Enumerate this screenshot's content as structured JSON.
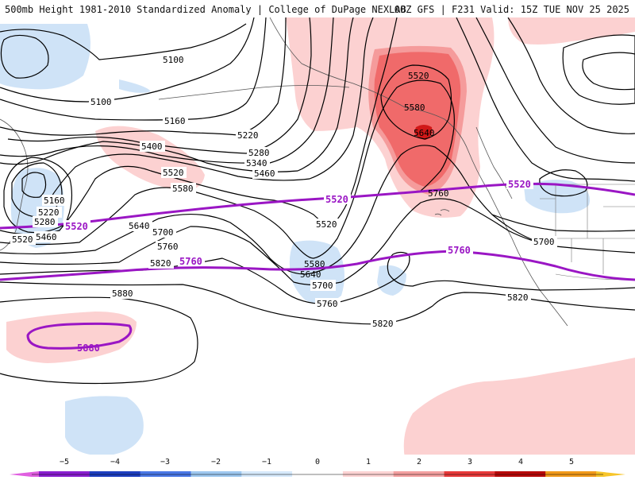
{
  "header": {
    "title": "500mb Height 1981-2010 Standardized Anomaly | College of DuPage NEXLAB",
    "run_info": "00Z GFS | F231 Valid: 15Z TUE NOV 25 2025"
  },
  "contour_labels": {
    "c5100a": "5100",
    "c5100b": "5100",
    "c5160a": "5160",
    "c5160b": "5160",
    "c5220a": "5220",
    "c5220b": "5220",
    "c5280a": "5280",
    "c5280b": "5280",
    "c5340": "5340",
    "c5400": "5400",
    "c5460a": "5460",
    "c5460b": "5460",
    "c5520a": "5520",
    "c5520b": "5520",
    "c5520c": "5520",
    "c5520d": "5520",
    "c5580a": "5580",
    "c5580b": "5580",
    "c5580c": "5580",
    "c5640a": "5640",
    "c5640b": "5640",
    "c5640c": "5640",
    "c5700a": "5700",
    "c5700b": "5700",
    "c5700c": "5700",
    "c5760a": "5760",
    "c5760b": "5760",
    "c5760c": "5760",
    "c5820a": "5820",
    "c5820b": "5820",
    "c5820c": "5820",
    "c5880": "5880"
  },
  "climo_labels": {
    "p5520a": "5520",
    "p5520b": "5520",
    "p5520c": "5520",
    "p5760a": "5760",
    "p5760b": "5760",
    "p5880": "5880"
  },
  "colorbar": {
    "labels": [
      "−5",
      "−4",
      "−3",
      "−2",
      "−1",
      "0",
      "1",
      "2",
      "3",
      "4",
      "5"
    ],
    "colors": [
      "#e05fe0",
      "#8a1fd0",
      "#1e3fc0",
      "#4a78e6",
      "#9ec8f0",
      "#d6e9fb",
      "#ffffff",
      "#fdd3d3",
      "#f4a0a0",
      "#e83a3a",
      "#b80a0a",
      "#f29a1a",
      "#f7c52a"
    ]
  },
  "map_colors": {
    "neg1": "#cfe3f7",
    "neg2": "#9cc5ef",
    "pos1": "#fcd1d1",
    "pos2": "#f59b9b",
    "pos3": "#f06a6a",
    "pos4": "#d01818",
    "contour": "#000000",
    "climo": "#9a16c4"
  }
}
